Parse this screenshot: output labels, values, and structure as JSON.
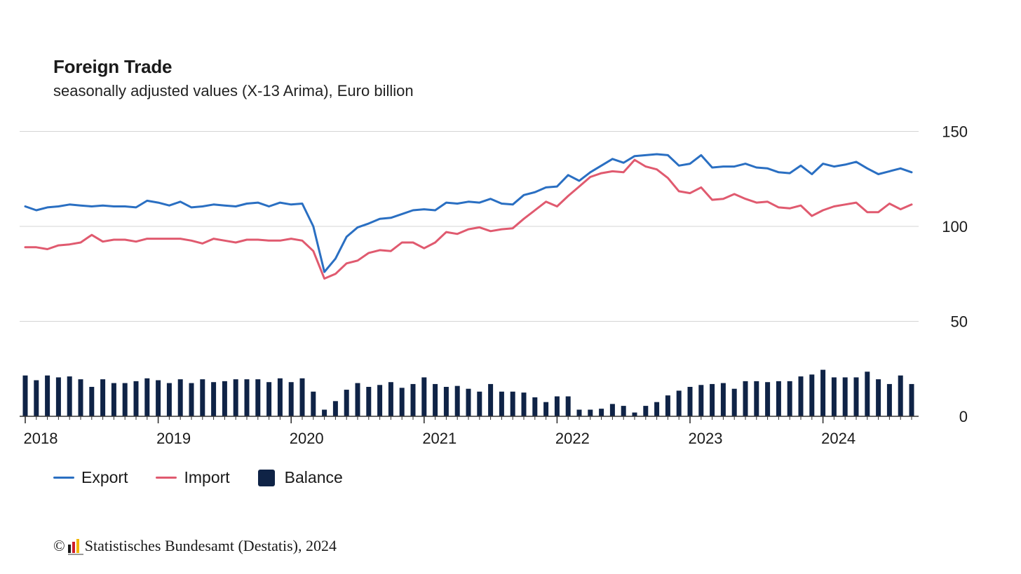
{
  "header": {
    "title": "Foreign Trade",
    "subtitle": "seasonally adjusted values (X-13 Arima), Euro billion"
  },
  "legend": {
    "export_label": "Export",
    "import_label": "Import",
    "balance_label": "Balance"
  },
  "source": {
    "copyright_symbol": "©",
    "text": "Statistisches Bundesamt (Destatis), 2024"
  },
  "colors": {
    "export": "#2a6fc2",
    "import": "#e05a6f",
    "balance": "#0f2346",
    "grid": "#d5d5d5",
    "axis": "#333333"
  },
  "chart_data": {
    "type": "line",
    "x_start": "2018-01",
    "x_end": "2024-09",
    "x_frequency": "monthly",
    "xticks": [
      "2018",
      "2019",
      "2020",
      "2021",
      "2022",
      "2023",
      "2024"
    ],
    "yticks": [
      0,
      50,
      100,
      150
    ],
    "ylim": [
      0,
      150
    ],
    "grid": true,
    "legend_position": "bottom-left",
    "series": [
      {
        "name": "Export",
        "type": "line",
        "values": [
          110.5,
          108.5,
          110,
          110.5,
          111.5,
          111,
          110.5,
          111,
          110.5,
          110.5,
          110,
          113.5,
          112.5,
          111,
          113,
          110,
          110.5,
          111.5,
          111,
          110.5,
          112,
          112.5,
          110.5,
          112.5,
          111.5,
          112,
          100,
          76,
          83,
          94.5,
          99.5,
          101.5,
          104,
          104.5,
          106.5,
          108.5,
          109,
          108.5,
          112.5,
          112,
          113,
          112.5,
          114.5,
          112,
          111.5,
          116.5,
          118,
          120.5,
          121,
          127,
          124,
          128.5,
          132,
          135.5,
          133.5,
          137,
          137.5,
          138,
          137.5,
          132,
          133,
          137.5,
          131,
          131.5,
          131.5,
          133,
          131,
          130.5,
          128.5,
          128,
          132,
          127.5,
          133,
          131.5,
          132.5,
          134,
          130.5,
          127.5,
          129,
          130.5,
          128.5
        ]
      },
      {
        "name": "Import",
        "type": "line",
        "values": [
          89,
          89,
          88,
          90,
          90.5,
          91.5,
          95.5,
          92,
          93,
          93,
          92,
          93.5,
          93.5,
          93.5,
          93.5,
          92.5,
          91,
          93.5,
          92.5,
          91.5,
          93,
          93,
          92.5,
          92.5,
          93.5,
          92.5,
          87,
          72.5,
          75,
          80.5,
          82,
          86,
          87.5,
          87,
          91.5,
          91.5,
          88.5,
          91.5,
          97,
          96,
          98.5,
          99.5,
          97.5,
          98.5,
          99,
          104,
          108.5,
          113,
          110.5,
          116,
          121,
          126,
          128,
          129,
          128.5,
          135,
          131.5,
          130,
          125.5,
          118.5,
          117.5,
          120.5,
          114,
          114.5,
          117,
          114.5,
          112.5,
          113,
          110,
          109.5,
          111,
          105.5,
          108.5,
          110.5,
          111.5,
          112.5,
          107.5,
          107.5,
          112,
          109,
          111.5
        ]
      },
      {
        "name": "Balance",
        "type": "bar",
        "values": [
          21.5,
          19,
          21.5,
          20.5,
          21,
          19.5,
          15.5,
          19.5,
          17.5,
          17.5,
          18.5,
          20,
          19,
          17.5,
          19.5,
          17.5,
          19.5,
          18,
          18.5,
          19.5,
          19.5,
          19.5,
          18,
          20,
          18,
          20,
          13,
          3.5,
          8,
          14,
          17.5,
          15.5,
          16.5,
          18,
          15,
          17,
          20.5,
          17,
          15.5,
          16,
          14.5,
          13,
          17,
          13,
          13,
          12.5,
          10,
          7.5,
          10.5,
          10.5,
          3.5,
          3.5,
          4,
          6.5,
          5.5,
          2,
          5.5,
          7.5,
          11,
          13.5,
          15.5,
          16.5,
          17,
          17.5,
          14.5,
          18.5,
          18.5,
          18,
          18.5,
          18.5,
          21,
          22,
          24.5,
          20.5,
          20.5,
          20.5,
          23.5,
          19.5,
          17,
          21.5,
          17
        ]
      }
    ]
  }
}
